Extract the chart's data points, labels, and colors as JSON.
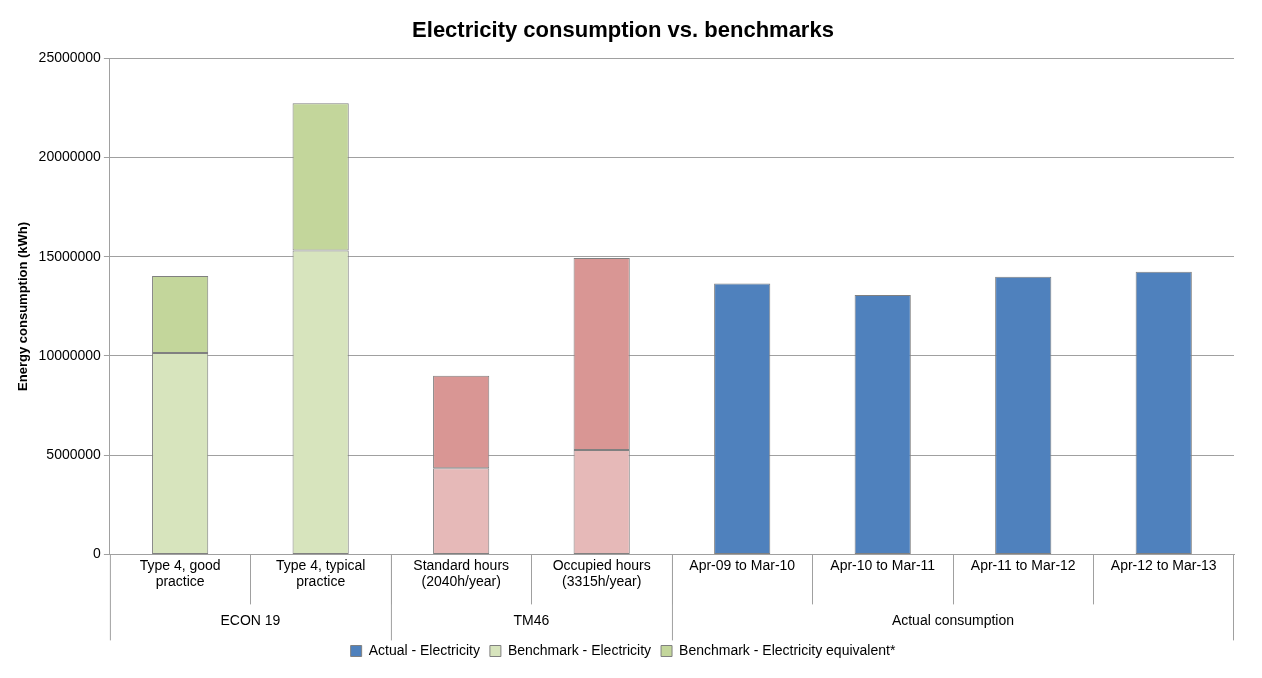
{
  "chart_data": {
    "type": "bar",
    "title": "Electricity consumption vs. benchmarks",
    "ylabel": "Energy consumption (kWh)",
    "categories": [
      "Type 4, good practice",
      "Type 4, typical practice",
      "Standard hours (2040h/year)",
      "Occupied hours (3315h/year)",
      "Apr-09 to Mar-10",
      "Apr-10 to Mar-11",
      "Apr-11 to Mar-12",
      "Apr-12 to Mar-13"
    ],
    "series": [
      {
        "name": "Actual - Electricity",
        "color": "#4f81bd",
        "values": [
          null,
          null,
          null,
          null,
          13650000,
          13080000,
          14000000,
          14250000
        ]
      },
      {
        "name": "Benchmark - Electricity",
        "color": "#d7e4bd",
        "colors": [
          "#d7e4bd",
          "#d7e4bd",
          "#e6b9b8",
          "#e6b9b8",
          null,
          null,
          null,
          null
        ],
        "values": [
          10150000,
          15320000,
          4340000,
          5260000,
          null,
          null,
          null,
          null
        ]
      },
      {
        "name": "Benchmark - Electricity equivalent*",
        "color": "#c3d69b",
        "colors": [
          "#c3d69b",
          "#c3d69b",
          "#d99694",
          "#d99694",
          null,
          null,
          null,
          null
        ],
        "values": [
          3880000,
          7420000,
          4660000,
          9680000,
          null,
          null,
          null,
          null
        ]
      }
    ],
    "stacked": true,
    "ylim": [
      0,
      25000000
    ],
    "yticks": [
      0,
      5000000,
      10000000,
      15000000,
      20000000,
      25000000
    ],
    "grid": "y",
    "legend": "bottom",
    "annotations": [
      "ECON 19",
      "TM46",
      "Actual consumption"
    ]
  }
}
